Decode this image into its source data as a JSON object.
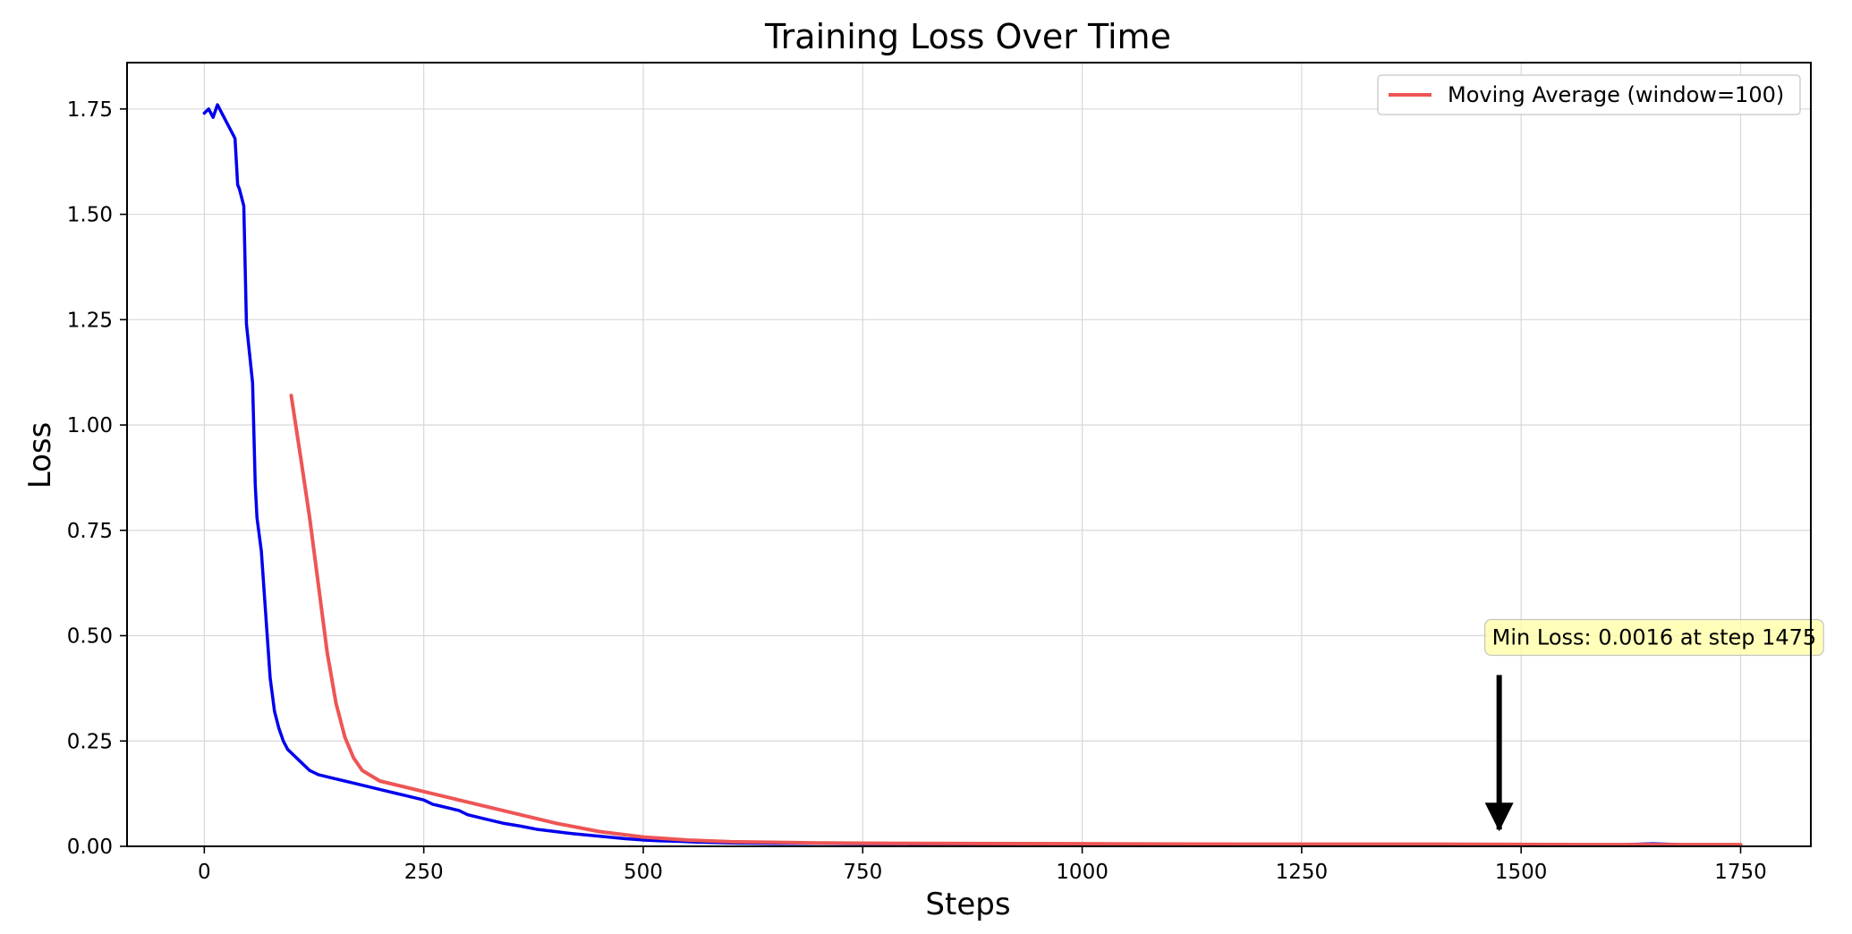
{
  "chart_data": {
    "type": "line",
    "title": "Training Loss Over Time",
    "xlabel": "Steps",
    "ylabel": "Loss",
    "xlim": [
      -88,
      1830
    ],
    "ylim": [
      0,
      1.86
    ],
    "xticks": [
      0,
      250,
      500,
      750,
      1000,
      1250,
      1500,
      1750
    ],
    "xtick_labels": [
      "0",
      "250",
      "500",
      "750",
      "1000",
      "1250",
      "1500",
      "1750"
    ],
    "yticks": [
      0,
      0.25,
      0.5,
      0.75,
      1.0,
      1.25,
      1.5,
      1.75
    ],
    "ytick_labels": [
      "0.00",
      "0.25",
      "0.50",
      "0.75",
      "1.00",
      "1.25",
      "1.50",
      "1.75"
    ],
    "grid": true,
    "legend": {
      "placement": "top-right"
    },
    "series": [
      {
        "key": "loss",
        "label": "",
        "color": "#0000ee",
        "show_in_legend": false,
        "x": [
          0,
          5,
          10,
          15,
          20,
          25,
          30,
          35,
          38,
          40,
          45,
          48,
          50,
          55,
          58,
          60,
          65,
          70,
          75,
          80,
          85,
          90,
          95,
          100,
          110,
          120,
          130,
          140,
          150,
          160,
          170,
          180,
          190,
          200,
          210,
          220,
          230,
          240,
          250,
          260,
          270,
          280,
          290,
          300,
          320,
          340,
          360,
          380,
          400,
          420,
          440,
          460,
          480,
          500,
          520,
          540,
          560,
          580,
          600,
          650,
          700,
          750,
          800,
          850,
          900,
          950,
          1000,
          1100,
          1200,
          1300,
          1400,
          1475,
          1500,
          1600,
          1650,
          1700,
          1750
        ],
        "y": [
          1.74,
          1.75,
          1.73,
          1.76,
          1.74,
          1.72,
          1.7,
          1.68,
          1.57,
          1.56,
          1.52,
          1.24,
          1.2,
          1.1,
          0.86,
          0.78,
          0.7,
          0.55,
          0.4,
          0.32,
          0.28,
          0.25,
          0.23,
          0.22,
          0.2,
          0.18,
          0.17,
          0.165,
          0.16,
          0.155,
          0.15,
          0.145,
          0.14,
          0.135,
          0.13,
          0.125,
          0.12,
          0.115,
          0.11,
          0.1,
          0.095,
          0.09,
          0.085,
          0.075,
          0.065,
          0.055,
          0.048,
          0.04,
          0.035,
          0.03,
          0.026,
          0.022,
          0.018,
          0.015,
          0.013,
          0.012,
          0.01,
          0.009,
          0.008,
          0.007,
          0.007,
          0.006,
          0.006,
          0.005,
          0.005,
          0.004,
          0.004,
          0.004,
          0.004,
          0.004,
          0.003,
          0.0016,
          0.003,
          0.003,
          0.006,
          0.003,
          0.003
        ]
      },
      {
        "key": "moving_average",
        "label": "Moving Average (window=100)",
        "color": "#ee5555",
        "show_in_legend": true,
        "x": [
          99,
          110,
          120,
          130,
          140,
          150,
          160,
          170,
          180,
          200,
          250,
          300,
          350,
          400,
          450,
          500,
          550,
          600,
          700,
          800,
          1000,
          1200,
          1400,
          1600,
          1750
        ],
        "y": [
          1.07,
          0.92,
          0.78,
          0.62,
          0.46,
          0.34,
          0.26,
          0.21,
          0.18,
          0.155,
          0.13,
          0.105,
          0.08,
          0.055,
          0.035,
          0.022,
          0.015,
          0.011,
          0.008,
          0.007,
          0.006,
          0.005,
          0.005,
          0.004,
          0.004
        ]
      }
    ],
    "annotations": [
      {
        "text": "Min Loss: 0.0016 at step 1475",
        "x": 1475,
        "y": 0.0016,
        "text_x": 1475,
        "text_y": 0.5,
        "box_color": "#ffffaa",
        "arrow_color": "#000000"
      }
    ]
  }
}
